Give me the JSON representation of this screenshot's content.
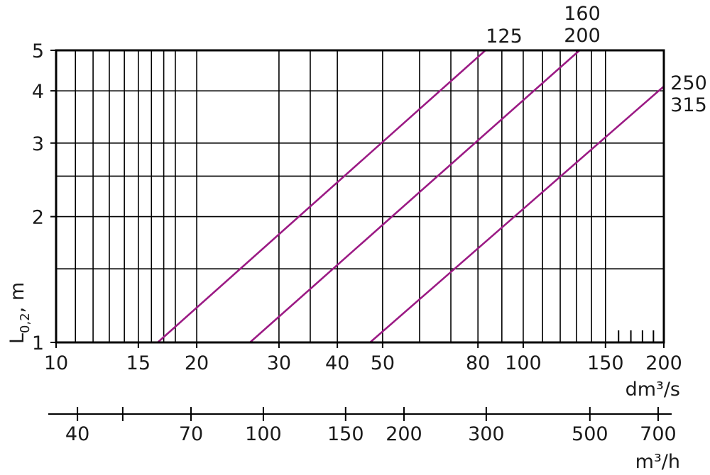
{
  "chart_data": {
    "type": "line",
    "x_scale": "log",
    "y_scale": "log",
    "xlim": [
      10,
      200
    ],
    "ylim": [
      1,
      5
    ],
    "xlabel": "dm³/s",
    "ylabel": "L0,2, m",
    "ylabel_main": "L",
    "ylabel_sub": "0,2",
    "ylabel_unit": ", m",
    "x2label": "m³/h",
    "x_tick_labels": [
      "10",
      "15",
      "20",
      "30",
      "40",
      "50",
      "80",
      "100",
      "150",
      "200"
    ],
    "y_tick_labels": [
      "1",
      "2",
      "3",
      "4",
      "5"
    ],
    "x2_tick_labels": [
      "40",
      "70",
      "100",
      "150",
      "200",
      "300",
      "500",
      "700"
    ],
    "x2_tick_values": [
      40,
      50,
      70,
      100,
      150,
      200,
      300,
      500,
      700
    ],
    "x_grid_values": [
      11,
      12,
      13,
      14,
      15,
      16,
      17,
      18,
      20,
      30,
      35,
      40,
      50,
      60,
      70,
      80,
      90,
      100,
      110,
      120,
      130,
      140,
      150
    ],
    "y_grid_values": [
      1.5,
      2,
      2.5,
      3,
      4
    ],
    "extra_small_ticks_x": [
      160,
      170,
      180,
      190,
      200
    ],
    "series": [
      {
        "name": "125",
        "label_lines": [
          "125"
        ],
        "points": [
          [
            16.5,
            1.0
          ],
          [
            83,
            5.0
          ]
        ]
      },
      {
        "name": "160 200",
        "label_lines": [
          "160",
          "200"
        ],
        "points": [
          [
            26,
            1.0
          ],
          [
            132,
            5.0
          ]
        ]
      },
      {
        "name": "250 315",
        "label_lines": [
          "250",
          "315"
        ],
        "points": [
          [
            47,
            1.0
          ],
          [
            200,
            4.1
          ]
        ]
      }
    ],
    "series_color": "#9b1a84",
    "grid": true
  }
}
